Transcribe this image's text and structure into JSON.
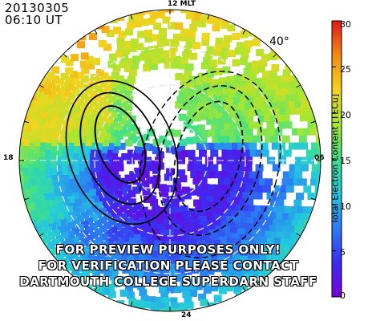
{
  "header": {
    "date": "20130305",
    "time": "06:10 UT"
  },
  "mlt_labels": {
    "top": "12 MLT",
    "bottom": "24",
    "left": "18",
    "right": "06"
  },
  "lat_label": "40°",
  "colorbar": {
    "title": "Total Electron Content [TECu]",
    "ticks": [
      "30",
      "25",
      "20",
      "15",
      "10",
      "5",
      "0"
    ],
    "range": [
      0,
      30
    ],
    "colormap": [
      "#7a00d6",
      "#3b2cf2",
      "#2a7cf2",
      "#24c8e0",
      "#3ee08a",
      "#a6e632",
      "#f2d41e",
      "#f28a14",
      "#e01818"
    ]
  },
  "watermark": {
    "line1": "FOR PREVIEW PURPOSES ONLY!",
    "line2": "FOR VERIFICATION PLEASE CONTACT",
    "line3": "DARTMOUTH COLLEGE SUPERDARN STAFF"
  },
  "chart_data": {
    "type": "heatmap",
    "projection": "polar (magnetic local time vs magnetic latitude)",
    "lat_min": 40,
    "grid": true,
    "value_range": [
      0,
      30
    ],
    "regions_tecu": [
      {
        "sector": "dayside poleward (12 MLT)",
        "tec": 16
      },
      {
        "sector": "dayside equatorward rim",
        "tec": 19
      },
      {
        "sector": "dusk (18 MLT) high-lat",
        "tec": 12
      },
      {
        "sector": "dawn (06 MLT) rim",
        "tec": 13
      },
      {
        "sector": "nightside / polar cap",
        "tec": 2
      },
      {
        "sector": "nightside rim (24 MLT)",
        "tec": 8
      }
    ]
  }
}
